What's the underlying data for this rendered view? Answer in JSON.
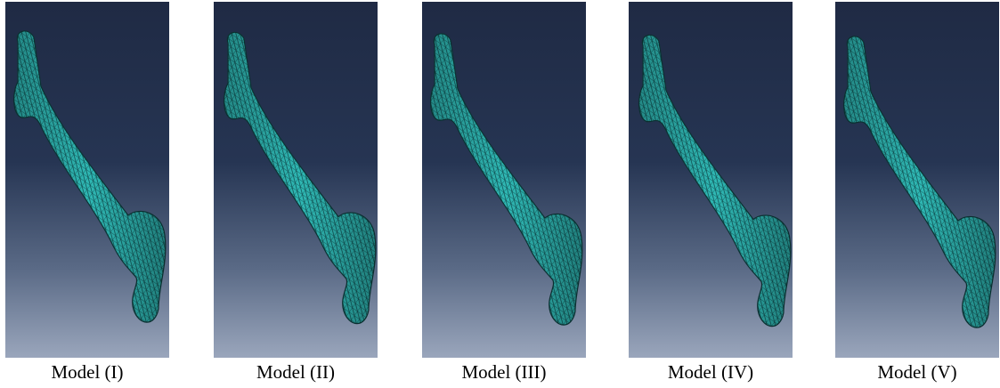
{
  "panels": [
    {
      "caption": "Model (I)"
    },
    {
      "caption": "Model (II)"
    },
    {
      "caption": "Model (III)"
    },
    {
      "caption": "Model (IV)"
    },
    {
      "caption": "Model (V)"
    }
  ]
}
